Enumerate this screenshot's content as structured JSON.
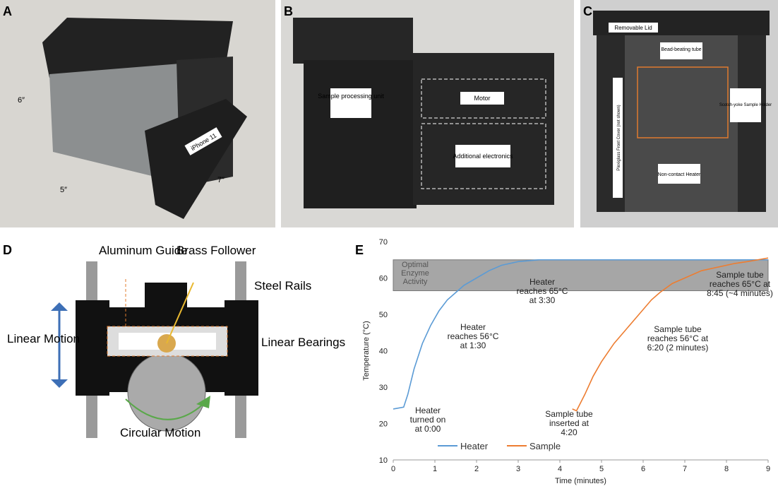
{
  "panel_labels": [
    "A",
    "B",
    "C",
    "D"
  ],
  "photo_a": {
    "dims": [
      "6″",
      "5″",
      "7″"
    ],
    "phone": "iPhone 11"
  },
  "photo_b": {
    "labels": [
      "Sample processing unit",
      "Motor",
      "Additional electronics"
    ]
  },
  "photo_c": {
    "labels": [
      "Removable Lid",
      "Bead-beating tube",
      "Scotch-yoke Sample Holder",
      "Plexiglass Front Cover (not shown)",
      "Non-contact Heater"
    ]
  },
  "diagram_d": {
    "labels": [
      "Aluminum Guide",
      "Brass Follower",
      "Steel Rails",
      "Linear Motion",
      "Linear Bearings",
      "Circular Motion"
    ]
  },
  "chart_data": {
    "type": "line",
    "panel_label": "E",
    "x_label": "Time (minutes)",
    "y_label": "Temperature (°C)",
    "xlim": [
      0,
      9
    ],
    "xticks": [
      0,
      1,
      2,
      3,
      4,
      5,
      6,
      7,
      8,
      9
    ],
    "ylim": [
      10,
      70
    ],
    "yticks": [
      10,
      20,
      30,
      40,
      50,
      60,
      70
    ],
    "optimal_range": [
      56.5,
      65
    ],
    "optimal_label": [
      "Optimal",
      "Enzyme",
      "Activity"
    ],
    "series": [
      {
        "name": "Heater",
        "color": "#5b9bd5",
        "x": [
          0,
          0.25,
          0.35,
          0.5,
          0.7,
          0.9,
          1.1,
          1.3,
          1.5,
          1.7,
          2,
          2.3,
          2.6,
          3,
          3.5,
          4,
          5,
          6,
          7,
          8,
          9
        ],
        "values": [
          24,
          24.5,
          28,
          35,
          42,
          47,
          51,
          54,
          56,
          58,
          60,
          62,
          63.5,
          64.5,
          65,
          65,
          65,
          65,
          65,
          65,
          65
        ]
      },
      {
        "name": "Sample",
        "color": "#ed7d31",
        "x": [
          4.3,
          4.4,
          4.6,
          4.8,
          5,
          5.3,
          5.6,
          5.9,
          6.2,
          6.4,
          6.7,
          7,
          7.4,
          7.8,
          8.2,
          8.5,
          8.75,
          9
        ],
        "values": [
          24,
          23.5,
          28,
          33,
          37,
          42,
          46,
          50,
          54,
          56,
          58.5,
          60,
          62,
          63,
          64,
          64.5,
          65,
          65.5
        ]
      }
    ],
    "annotations": [
      [
        "Heater",
        "turned on",
        "at 0:00"
      ],
      [
        "Heater",
        "reaches 56°C",
        "at 1:30"
      ],
      [
        "Heater",
        "reaches 65°C",
        "at 3:30"
      ],
      [
        "Sample tube",
        "inserted at",
        "4:20"
      ],
      [
        "Sample tube",
        "reaches 56°C at",
        "6:20 (2 minutes)"
      ],
      [
        "Sample tube",
        "reaches 65°C at",
        "8:45 (~4 minutes)"
      ]
    ]
  }
}
